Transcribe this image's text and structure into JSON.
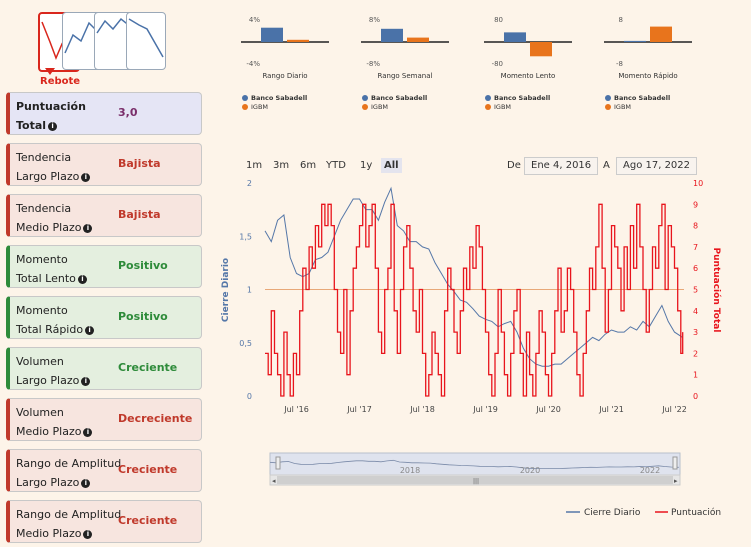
{
  "pattern": {
    "active_label": "Rebote"
  },
  "cards": [
    {
      "line1": "Puntuación",
      "line2": "Total",
      "value": "3,0",
      "kind": "neutral"
    },
    {
      "line1": "Tendencia",
      "line2": "Largo Plazo",
      "value": "Bajista",
      "kind": "neg"
    },
    {
      "line1": "Tendencia",
      "line2": "Medio Plazo",
      "value": "Bajista",
      "kind": "neg"
    },
    {
      "line1": "Momento",
      "line2": "Total Lento",
      "value": "Positivo",
      "kind": "pos"
    },
    {
      "line1": "Momento",
      "line2": "Total Rápido",
      "value": "Positivo",
      "kind": "pos"
    },
    {
      "line1": "Volumen",
      "line2": "Largo Plazo",
      "value": "Creciente",
      "kind": "pos"
    },
    {
      "line1": "Volumen",
      "line2": "Medio Plazo",
      "value": "Decreciente",
      "kind": "neg"
    },
    {
      "line1": "Rango de Amplitud",
      "line2": "Largo Plazo",
      "value": "Creciente",
      "kind": "neg"
    },
    {
      "line1": "Rango de Amplitud",
      "line2": "Medio Plazo",
      "value": "Creciente",
      "kind": "neg"
    }
  ],
  "range_selector": {
    "buttons": [
      "1m",
      "3m",
      "6m",
      "YTD",
      "1y",
      "All"
    ],
    "active": "All",
    "from_label": "De",
    "from_value": "Ene 4, 2016",
    "to_label": "A",
    "to_value": "Ago 17, 2022"
  },
  "colors": {
    "close": "#5577a8",
    "score": "#e8141c",
    "bank": "#4a72a8",
    "index": "#e8741c"
  },
  "chart_data": [
    {
      "type": "bar",
      "title": "Rango Diario",
      "ytick_top": "4%",
      "ytick_bottom": "-4%",
      "ylim": [
        -4,
        4
      ],
      "categories": [
        "Banco Sabadell",
        "IGBM"
      ],
      "values": [
        2.6,
        0.4
      ]
    },
    {
      "type": "bar",
      "title": "Rango Semanal",
      "ytick_top": "8%",
      "ytick_bottom": "-8%",
      "ylim": [
        -8,
        8
      ],
      "categories": [
        "Banco Sabadell",
        "IGBM"
      ],
      "values": [
        4.8,
        1.6
      ]
    },
    {
      "type": "bar",
      "title": "Momento Lento",
      "ytick_top": "80",
      "ytick_bottom": "-80",
      "ylim": [
        -80,
        80
      ],
      "categories": [
        "Banco Sabadell",
        "IGBM"
      ],
      "values": [
        35,
        -52
      ]
    },
    {
      "type": "bar",
      "title": "Momento Rápido",
      "ytick_top": "8",
      "ytick_bottom": "-8",
      "ylim": [
        -8,
        8
      ],
      "categories": [
        "Banco Sabadell",
        "IGBM"
      ],
      "values": [
        0.4,
        5.6
      ]
    },
    {
      "type": "line",
      "ylabel_left": "Cierre Diario",
      "ylabel_right": "Puntuación Total",
      "ylim_left": [
        0,
        2
      ],
      "ylim_right": [
        0,
        10
      ],
      "yticks_left": [
        "0",
        "0,5",
        "1",
        "1,5",
        "2"
      ],
      "yticks_right": [
        "0",
        "1",
        "2",
        "3",
        "4",
        "5",
        "6",
        "7",
        "8",
        "9",
        "10"
      ],
      "x_domain": [
        2016.0,
        2022.65
      ],
      "xticks": [
        {
          "label": "Jul '16",
          "x": 2016.5
        },
        {
          "label": "Jul '17",
          "x": 2017.5
        },
        {
          "label": "Jul '18",
          "x": 2018.5
        },
        {
          "label": "Jul '19",
          "x": 2019.5
        },
        {
          "label": "Jul '20",
          "x": 2020.5
        },
        {
          "label": "Jul '21",
          "x": 2021.5
        },
        {
          "label": "Jul '22",
          "x": 2022.5
        }
      ],
      "reference_line_left": 1,
      "series": [
        {
          "name": "Cierre Diario",
          "axis": "left",
          "x": [
            2016.0,
            2016.1,
            2016.2,
            2016.3,
            2016.4,
            2016.5,
            2016.6,
            2016.7,
            2016.8,
            2016.9,
            2017.0,
            2017.1,
            2017.2,
            2017.3,
            2017.4,
            2017.5,
            2017.6,
            2017.7,
            2017.8,
            2017.9,
            2018.0,
            2018.1,
            2018.2,
            2018.3,
            2018.4,
            2018.5,
            2018.6,
            2018.7,
            2018.8,
            2018.9,
            2019.0,
            2019.1,
            2019.2,
            2019.3,
            2019.4,
            2019.5,
            2019.6,
            2019.7,
            2019.8,
            2019.9,
            2020.0,
            2020.1,
            2020.2,
            2020.3,
            2020.4,
            2020.5,
            2020.6,
            2020.7,
            2020.8,
            2020.9,
            2021.0,
            2021.1,
            2021.2,
            2021.3,
            2021.4,
            2021.5,
            2021.6,
            2021.7,
            2021.8,
            2021.9,
            2022.0,
            2022.1,
            2022.2,
            2022.3,
            2022.4,
            2022.5,
            2022.63
          ],
          "y": [
            1.55,
            1.45,
            1.65,
            1.7,
            1.3,
            1.15,
            1.12,
            1.15,
            1.28,
            1.3,
            1.35,
            1.5,
            1.65,
            1.75,
            1.85,
            1.85,
            1.75,
            1.75,
            1.65,
            1.82,
            1.95,
            1.6,
            1.55,
            1.45,
            1.45,
            1.4,
            1.38,
            1.25,
            1.15,
            1.05,
            0.98,
            0.9,
            0.88,
            0.82,
            0.75,
            0.72,
            0.7,
            0.65,
            0.68,
            0.7,
            0.6,
            0.45,
            0.35,
            0.3,
            0.28,
            0.28,
            0.3,
            0.3,
            0.35,
            0.4,
            0.45,
            0.5,
            0.55,
            0.52,
            0.58,
            0.62,
            0.6,
            0.6,
            0.65,
            0.62,
            0.7,
            0.65,
            0.75,
            0.85,
            0.7,
            0.6,
            0.55
          ]
        },
        {
          "name": "Puntuación",
          "axis": "right",
          "x": [
            2016.0,
            2016.05,
            2016.1,
            2016.15,
            2016.2,
            2016.25,
            2016.3,
            2016.35,
            2016.4,
            2016.45,
            2016.5,
            2016.55,
            2016.6,
            2016.65,
            2016.7,
            2016.75,
            2016.8,
            2016.85,
            2016.9,
            2016.95,
            2017.0,
            2017.05,
            2017.1,
            2017.15,
            2017.2,
            2017.25,
            2017.3,
            2017.35,
            2017.4,
            2017.45,
            2017.5,
            2017.55,
            2017.6,
            2017.65,
            2017.7,
            2017.75,
            2017.8,
            2017.85,
            2017.9,
            2017.95,
            2018.0,
            2018.05,
            2018.1,
            2018.15,
            2018.2,
            2018.25,
            2018.3,
            2018.35,
            2018.4,
            2018.45,
            2018.5,
            2018.55,
            2018.6,
            2018.65,
            2018.7,
            2018.75,
            2018.8,
            2018.85,
            2018.9,
            2018.95,
            2019.0,
            2019.05,
            2019.1,
            2019.15,
            2019.2,
            2019.25,
            2019.3,
            2019.35,
            2019.4,
            2019.45,
            2019.5,
            2019.55,
            2019.6,
            2019.65,
            2019.7,
            2019.75,
            2019.8,
            2019.85,
            2019.9,
            2019.95,
            2020.0,
            2020.05,
            2020.1,
            2020.15,
            2020.2,
            2020.25,
            2020.3,
            2020.35,
            2020.4,
            2020.45,
            2020.5,
            2020.55,
            2020.6,
            2020.65,
            2020.7,
            2020.75,
            2020.8,
            2020.85,
            2020.9,
            2020.95,
            2021.0,
            2021.05,
            2021.1,
            2021.15,
            2021.2,
            2021.25,
            2021.3,
            2021.35,
            2021.4,
            2021.45,
            2021.5,
            2021.55,
            2021.6,
            2021.65,
            2021.7,
            2021.75,
            2021.8,
            2021.85,
            2021.9,
            2021.95,
            2022.0,
            2022.05,
            2022.1,
            2022.15,
            2022.2,
            2022.25,
            2022.3,
            2022.35,
            2022.4,
            2022.45,
            2022.5,
            2022.55,
            2022.6,
            2022.63
          ],
          "y": [
            2,
            1,
            4,
            2,
            1,
            0,
            3,
            1,
            0,
            2,
            1,
            4,
            6,
            5,
            7,
            6,
            8,
            7,
            9,
            8,
            9,
            8,
            5,
            3,
            2,
            5,
            1,
            4,
            6,
            7,
            8,
            9,
            7,
            8,
            9,
            6,
            3,
            2,
            5,
            6,
            9,
            4,
            2,
            5,
            7,
            8,
            6,
            4,
            3,
            5,
            2,
            0,
            1,
            3,
            2,
            1,
            0,
            4,
            6,
            5,
            3,
            2,
            4,
            6,
            5,
            7,
            6,
            8,
            7,
            5,
            3,
            1,
            0,
            2,
            5,
            3,
            1,
            0,
            2,
            4,
            5,
            2,
            0,
            3,
            1,
            0,
            2,
            4,
            3,
            1,
            0,
            2,
            4,
            6,
            3,
            4,
            6,
            5,
            3,
            1,
            0,
            2,
            4,
            6,
            5,
            7,
            9,
            6,
            3,
            5,
            8,
            7,
            6,
            4,
            7,
            5,
            8,
            6,
            9,
            7,
            5,
            3,
            5,
            7,
            6,
            8,
            9,
            5,
            8,
            7,
            6,
            4,
            2,
            3
          ]
        }
      ],
      "legend": [
        "Cierre Diario",
        "Puntuación"
      ],
      "navigator": {
        "labels": [
          "2018",
          "2020",
          "2022"
        ]
      },
      "mini_legend": [
        "Banco Sabadell",
        "IGBM"
      ]
    }
  ]
}
